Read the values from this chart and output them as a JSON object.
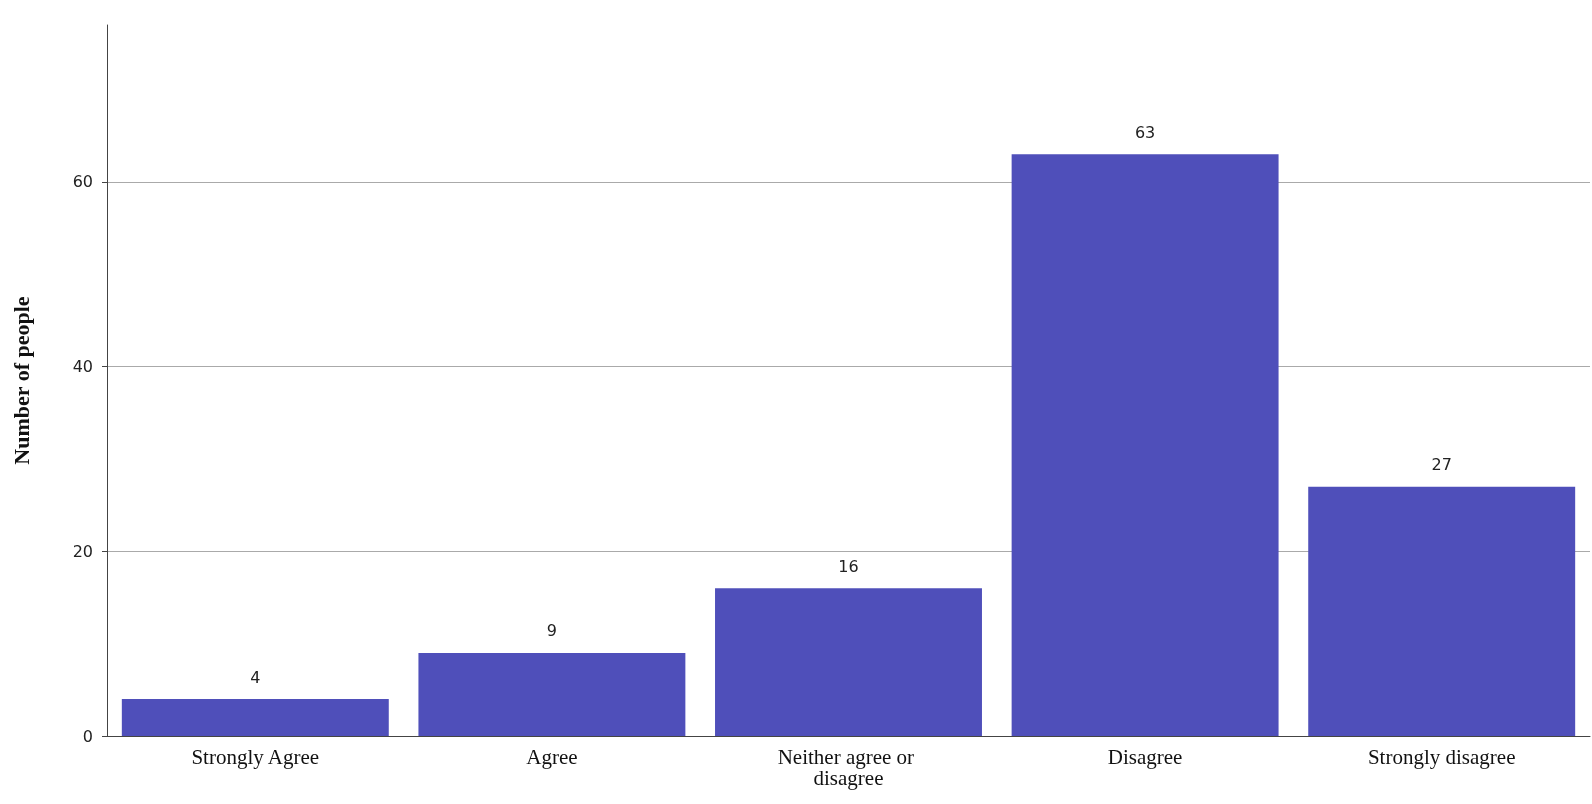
{
  "chart_data": {
    "type": "bar",
    "ylabel": "Number of people",
    "categories": [
      "Strongly Agree",
      "Agree",
      "Neither agree or disagree",
      "Disagree",
      "Strongly disagree"
    ],
    "values": [
      4,
      9,
      16,
      63,
      27
    ],
    "color": "#4f4fba",
    "ylim": [
      0,
      77
    ],
    "yticks": [
      0,
      20,
      40,
      60
    ],
    "grid": "y",
    "data_labels": true
  }
}
